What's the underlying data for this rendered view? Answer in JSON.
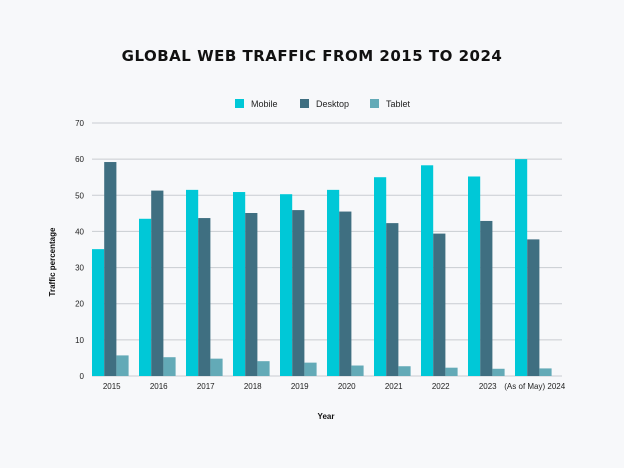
{
  "chart_data": {
    "type": "bar",
    "title": "GLOBAL WEB TRAFFIC FROM 2015 TO 2024",
    "xlabel": "Year",
    "ylabel": "Traffic percentage",
    "ylim": [
      0,
      70
    ],
    "yticks": [
      0,
      10,
      20,
      30,
      40,
      50,
      60,
      70
    ],
    "grid": true,
    "legend_position": "top-center",
    "categories": [
      "2015",
      "2016",
      "2017",
      "2018",
      "2019",
      "2020",
      "2021",
      "2022",
      "2023",
      "(As of May) 2024"
    ],
    "series": [
      {
        "name": "Mobile",
        "color": "#00c8d7",
        "values": [
          35.1,
          43.5,
          51.5,
          50.9,
          50.3,
          51.5,
          55.0,
          58.3,
          55.2,
          60.0
        ]
      },
      {
        "name": "Desktop",
        "color": "#3f6f81",
        "values": [
          59.2,
          51.3,
          43.7,
          45.1,
          45.9,
          45.5,
          42.3,
          39.4,
          42.9,
          37.8
        ]
      },
      {
        "name": "Tablet",
        "color": "#63aab7",
        "values": [
          5.7,
          5.2,
          4.8,
          4.1,
          3.7,
          2.9,
          2.7,
          2.3,
          2.0,
          2.1
        ]
      }
    ]
  }
}
